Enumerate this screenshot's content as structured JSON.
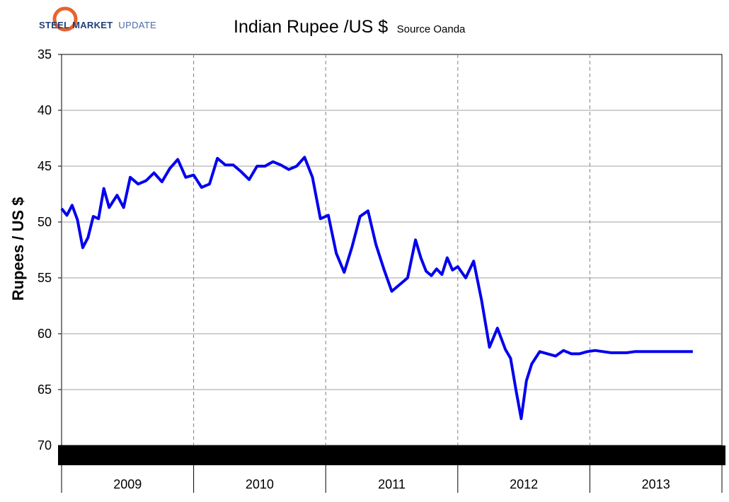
{
  "logo": {
    "text_bold": "STEEL MARKET",
    "text_light": "UPDATE",
    "ring_colors": [
      "#e8632b",
      "#f4a321",
      "#c0c0c0"
    ]
  },
  "chart_data": {
    "type": "line",
    "title": "Indian Rupee /US $",
    "subtitle": "Source Oanda",
    "ylabel": "Rupees / US $",
    "xlabel": "",
    "y_inverted": true,
    "ylim": [
      35,
      70
    ],
    "yticks": [
      35,
      40,
      45,
      50,
      55,
      60,
      65,
      70
    ],
    "grid": "horizontal solid, vertical dashed at year boundaries",
    "xlim": [
      2009.0,
      2014.0
    ],
    "categories": [
      "2009",
      "2010",
      "2011",
      "2012",
      "2013"
    ],
    "series": [
      {
        "color": "#0000ee",
        "x": [
          2009.0,
          2009.04,
          2009.08,
          2009.12,
          2009.16,
          2009.2,
          2009.24,
          2009.28,
          2009.32,
          2009.36,
          2009.42,
          2009.47,
          2009.52,
          2009.58,
          2009.64,
          2009.7,
          2009.76,
          2009.82,
          2009.88,
          2009.94,
          2010.0,
          2010.06,
          2010.12,
          2010.18,
          2010.24,
          2010.3,
          2010.36,
          2010.42,
          2010.48,
          2010.54,
          2010.6,
          2010.66,
          2010.72,
          2010.78,
          2010.84,
          2010.9,
          2010.96,
          2011.02,
          2011.08,
          2011.14,
          2011.2,
          2011.26,
          2011.32,
          2011.38,
          2011.44,
          2011.5,
          2011.56,
          2011.62,
          2011.68,
          2011.72,
          2011.76,
          2011.8,
          2011.84,
          2011.88,
          2011.92,
          2011.96,
          2012.0,
          2012.06,
          2012.12,
          2012.18,
          2012.24,
          2012.3,
          2012.36,
          2012.4,
          2012.44,
          2012.48,
          2012.52,
          2012.56,
          2012.62,
          2012.68,
          2012.74,
          2012.8,
          2012.86,
          2012.92,
          2012.98,
          2013.04,
          2013.1,
          2013.16,
          2013.22,
          2013.28,
          2013.34,
          2013.38,
          2013.42,
          2013.46,
          2013.5,
          2013.54,
          2013.58,
          2013.62,
          2013.64,
          2013.66,
          2013.68,
          2013.7,
          2013.72,
          2013.74,
          2013.76,
          2013.78
        ],
        "y": [
          48.8,
          49.4,
          48.5,
          49.8,
          52.3,
          51.4,
          49.5,
          49.7,
          47.0,
          48.7,
          47.6,
          48.7,
          46.0,
          46.6,
          46.3,
          45.6,
          46.4,
          45.2,
          44.4,
          46.0,
          45.8,
          46.9,
          46.6,
          44.3,
          44.9,
          44.9,
          45.5,
          46.2,
          45.0,
          45.0,
          44.6,
          44.9,
          45.3,
          45.0,
          44.2,
          46.0,
          49.7,
          49.4,
          52.8,
          54.5,
          52.2,
          49.5,
          49.0,
          52.0,
          54.2,
          56.2,
          55.6,
          55.0,
          51.6,
          53.2,
          54.4,
          54.8,
          54.2,
          54.7,
          53.2,
          54.3,
          54.0,
          55.0,
          53.5,
          57.0,
          61.2,
          59.5,
          61.4,
          62.2,
          65.0,
          67.6,
          64.2,
          62.7,
          61.6,
          61.8,
          62.0,
          61.5,
          61.8,
          61.8,
          61.6,
          61.5,
          61.6,
          61.7,
          61.7,
          61.7,
          61.6,
          61.6,
          61.6,
          61.6,
          61.6,
          61.6,
          61.6,
          61.6,
          61.6,
          61.6,
          61.6,
          61.6,
          61.6,
          61.6,
          61.6,
          61.6
        ]
      }
    ]
  }
}
